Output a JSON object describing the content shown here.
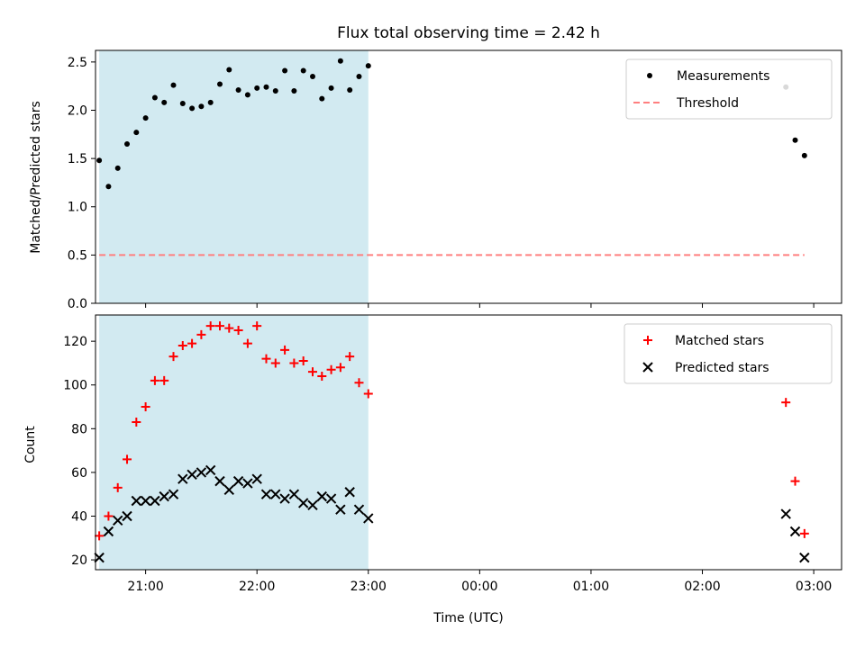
{
  "title": "Flux total observing time = 2.42 h",
  "colors": {
    "observing_window": "#add8e6",
    "threshold": "#ff7f7f",
    "matched": "#ff0000",
    "predicted": "#000000",
    "measurements": "#000000"
  },
  "chart_data": [
    {
      "type": "scatter",
      "panel": "top",
      "ylabel": "Matched/Predicted stars",
      "xlabel": "",
      "xlim": [
        "20:33",
        "03:15"
      ],
      "ylim": [
        0,
        2.62
      ],
      "yticks": [
        "0.0",
        "0.5",
        "1.0",
        "1.5",
        "2.0",
        "2.5"
      ],
      "grid": false,
      "legend_placement": "top-right",
      "shaded_span": [
        "20:35",
        "23:00"
      ],
      "series": [
        {
          "name": "Measurements",
          "marker": "dot",
          "x": [
            "20:35",
            "20:40",
            "20:45",
            "20:50",
            "20:55",
            "21:00",
            "21:05",
            "21:10",
            "21:15",
            "21:20",
            "21:25",
            "21:30",
            "21:35",
            "21:40",
            "21:45",
            "21:50",
            "21:55",
            "22:00",
            "22:05",
            "22:10",
            "22:15",
            "22:20",
            "22:25",
            "22:30",
            "22:35",
            "22:40",
            "22:45",
            "22:50",
            "22:55",
            "23:00",
            "02:45",
            "02:50",
            "02:55"
          ],
          "values": [
            1.48,
            1.21,
            1.4,
            1.65,
            1.77,
            1.92,
            2.13,
            2.08,
            2.26,
            2.07,
            2.02,
            2.04,
            2.08,
            2.27,
            2.42,
            2.21,
            2.16,
            2.23,
            2.24,
            2.2,
            2.41,
            2.2,
            2.41,
            2.35,
            2.12,
            2.23,
            2.51,
            2.21,
            2.35,
            2.46,
            2.24,
            1.69,
            1.53
          ]
        },
        {
          "name": "Threshold",
          "style": "dashed",
          "x": [
            "20:35",
            "02:55"
          ],
          "values": [
            0.5,
            0.5
          ]
        }
      ]
    },
    {
      "type": "scatter",
      "panel": "bottom",
      "ylabel": "Count",
      "xlabel": "Time (UTC)",
      "xlim": [
        "20:33",
        "03:15"
      ],
      "ylim": [
        15.5,
        132
      ],
      "yticks": [
        "20",
        "40",
        "60",
        "80",
        "100",
        "120"
      ],
      "xticks": [
        "21:00",
        "22:00",
        "23:00",
        "00:00",
        "01:00",
        "02:00",
        "03:00"
      ],
      "grid": false,
      "legend_placement": "top-right",
      "shaded_span": [
        "20:35",
        "23:00"
      ],
      "series": [
        {
          "name": "Matched stars",
          "marker": "plus",
          "x": [
            "20:35",
            "20:40",
            "20:45",
            "20:50",
            "20:55",
            "21:00",
            "21:05",
            "21:10",
            "21:15",
            "21:20",
            "21:25",
            "21:30",
            "21:35",
            "21:40",
            "21:45",
            "21:50",
            "21:55",
            "22:00",
            "22:05",
            "22:10",
            "22:15",
            "22:20",
            "22:25",
            "22:30",
            "22:35",
            "22:40",
            "22:45",
            "22:50",
            "22:55",
            "23:00",
            "02:45",
            "02:50",
            "02:55"
          ],
          "values": [
            31,
            40,
            53,
            66,
            83,
            90,
            102,
            102,
            113,
            118,
            119,
            123,
            127,
            127,
            126,
            125,
            119,
            127,
            112,
            110,
            116,
            110,
            111,
            106,
            104,
            107,
            108,
            113,
            101,
            96,
            92,
            56,
            32
          ]
        },
        {
          "name": "Predicted stars",
          "marker": "x",
          "x": [
            "20:35",
            "20:40",
            "20:45",
            "20:50",
            "20:55",
            "21:00",
            "21:05",
            "21:10",
            "21:15",
            "21:20",
            "21:25",
            "21:30",
            "21:35",
            "21:40",
            "21:45",
            "21:50",
            "21:55",
            "22:00",
            "22:05",
            "22:10",
            "22:15",
            "22:20",
            "22:25",
            "22:30",
            "22:35",
            "22:40",
            "22:45",
            "22:50",
            "22:55",
            "23:00",
            "02:45",
            "02:50",
            "02:55"
          ],
          "values": [
            21,
            33,
            38,
            40,
            47,
            47,
            47,
            49,
            50,
            57,
            59,
            60,
            61,
            56,
            52,
            56,
            55,
            57,
            50,
            50,
            48,
            50,
            46,
            45,
            49,
            48,
            43,
            51,
            43,
            39,
            41,
            33,
            21
          ]
        }
      ]
    }
  ]
}
